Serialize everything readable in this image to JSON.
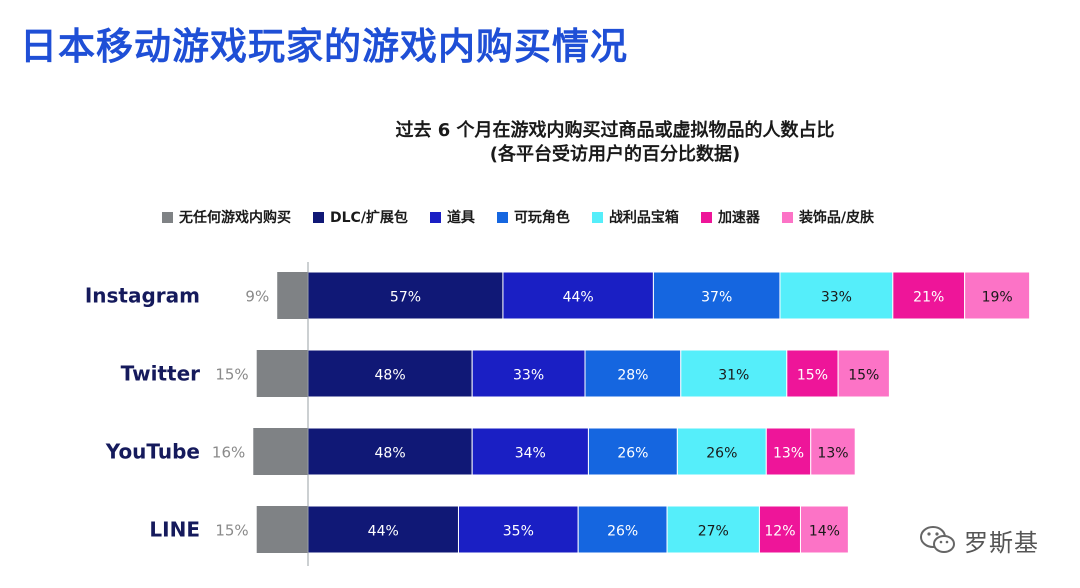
{
  "page_title": "日本移动游戏玩家的游戏内购买情况",
  "watermark": {
    "text": "罗斯基",
    "icon": "wechat-icon"
  },
  "chart_data": {
    "type": "bar",
    "orientation": "horizontal",
    "stacked": true,
    "title": "过去 6 个月在游戏内购买过商品或虚拟物品的人数占比",
    "subtitle": "(各平台受访用户的百分比数据)",
    "xlabel": "",
    "ylabel": "",
    "unit": "%",
    "legend_position": "top",
    "grid": false,
    "categories": [
      "Instagram",
      "Twitter",
      "YouTube",
      "LINE"
    ],
    "negative_series": {
      "name": "无任何游戏内购买",
      "color": "#7f8285",
      "values": [
        9,
        15,
        16,
        15
      ],
      "labels": [
        "9%",
        "15%",
        "16%",
        "15%"
      ]
    },
    "series": [
      {
        "name": "DLC/扩展包",
        "color": "#101876",
        "values": [
          57,
          48,
          48,
          44
        ],
        "labels": [
          "57%",
          "48%",
          "48%",
          "44%"
        ]
      },
      {
        "name": "道具",
        "color": "#1a1fc4",
        "values": [
          44,
          33,
          34,
          35
        ],
        "labels": [
          "44%",
          "33%",
          "34%",
          "35%"
        ]
      },
      {
        "name": "可玩角色",
        "color": "#1566e0",
        "values": [
          37,
          28,
          26,
          26
        ],
        "labels": [
          "37%",
          "28%",
          "26%",
          "26%"
        ]
      },
      {
        "name": "战利品宝箱",
        "color": "#55eefa",
        "values": [
          33,
          31,
          26,
          27
        ],
        "labels": [
          "33%",
          "31%",
          "26%",
          "27%"
        ]
      },
      {
        "name": "加速器",
        "color": "#ee1599",
        "values": [
          21,
          15,
          13,
          12
        ],
        "labels": [
          "21%",
          "15%",
          "13%",
          "12%"
        ]
      },
      {
        "name": "装饰品/皮肤",
        "color": "#fc73c6",
        "values": [
          19,
          15,
          13,
          14
        ],
        "labels": [
          "19%",
          "15%",
          "13%",
          "14%"
        ]
      }
    ]
  }
}
